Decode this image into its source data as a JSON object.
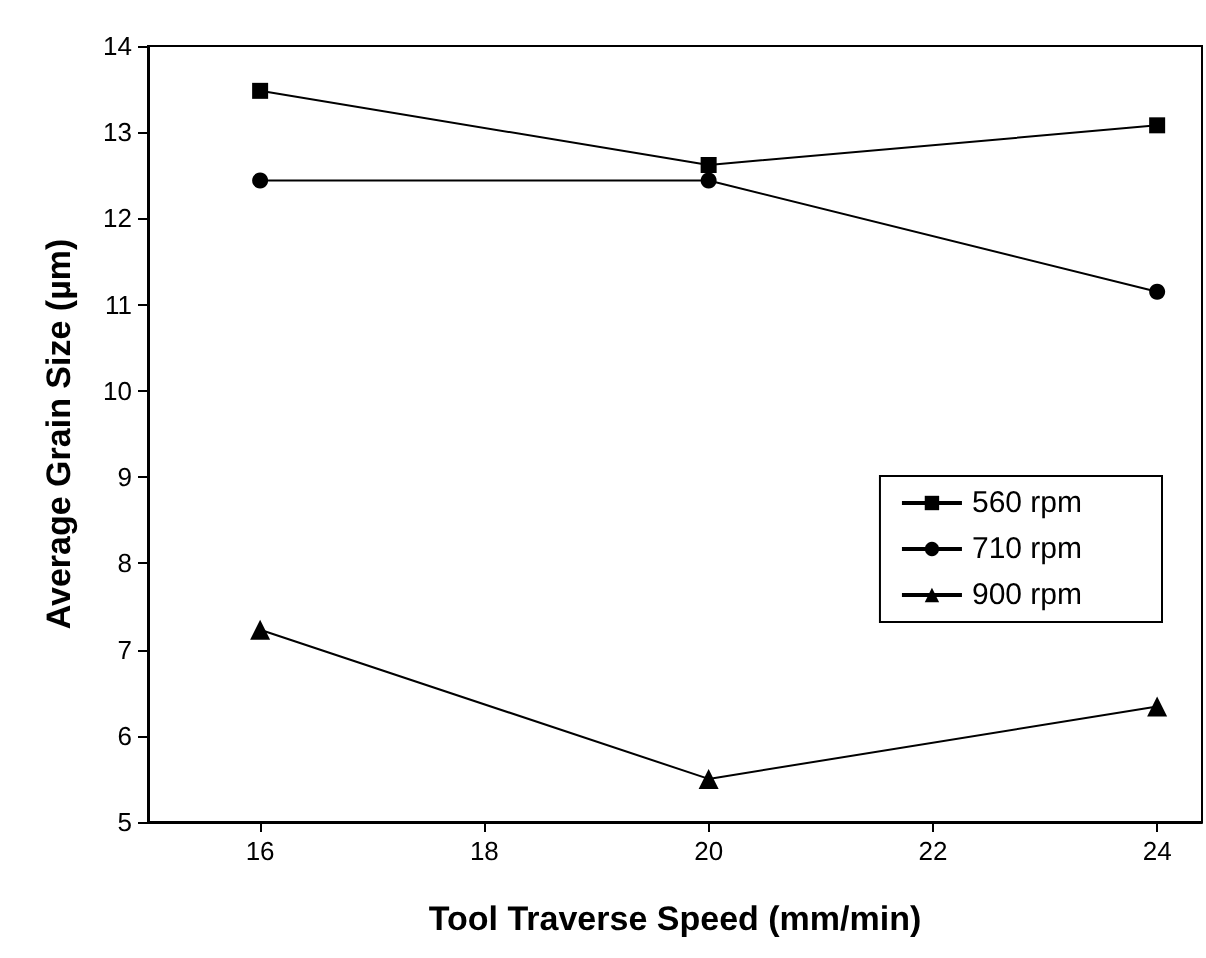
{
  "chart_data": {
    "type": "line",
    "xlabel": "Tool Traverse Speed (mm/min)",
    "ylabel": "Average Grain Size (µm)",
    "x": [
      16,
      20,
      24
    ],
    "series": [
      {
        "name": "560 rpm",
        "color": "#000000",
        "marker": "square",
        "values": [
          13.48,
          12.62,
          13.08
        ]
      },
      {
        "name": "710 rpm",
        "color": "#000000",
        "marker": "circle",
        "values": [
          12.44,
          12.44,
          11.15
        ]
      },
      {
        "name": "900 rpm",
        "color": "#000000",
        "marker": "triangle",
        "values": [
          7.23,
          5.5,
          6.34
        ]
      }
    ],
    "xlim": [
      15,
      24.4
    ],
    "xticks": [
      16,
      18,
      20,
      22,
      24
    ],
    "ylim": [
      5,
      14
    ],
    "yticks": [
      5,
      6,
      7,
      8,
      9,
      10,
      11,
      12,
      13,
      14
    ],
    "legend": "right",
    "grid": false,
    "line_style": "solid"
  }
}
